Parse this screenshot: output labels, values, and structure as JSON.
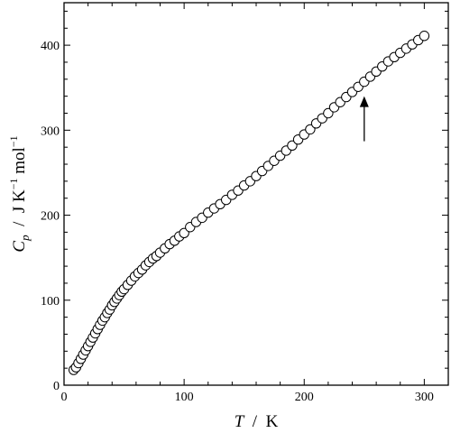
{
  "chart_data": {
    "type": "scatter",
    "xlabel": "T / K",
    "ylabel": "Cp / J K−1 mol−1",
    "xlabel_parts": {
      "symbol": "T",
      "sep": "  /  ",
      "unit": "K"
    },
    "ylabel_parts": {
      "symbol": "C",
      "subscript": "p",
      "sep": "  /  ",
      "unit_a": "J K",
      "sup_a": "−1",
      "unit_b": " mol",
      "sup_b": "−1"
    },
    "xlim": [
      0,
      320
    ],
    "ylim": [
      0,
      450
    ],
    "x_ticks": [
      "0",
      "100",
      "200",
      "300"
    ],
    "y_ticks": [
      "0",
      "100",
      "200",
      "300",
      "400"
    ],
    "grid": false,
    "marker": "open-circle",
    "annotation": {
      "type": "arrow",
      "x": 250,
      "y_tail": 287,
      "y_head": 340
    },
    "series": [
      {
        "x": [
          8,
          10,
          12,
          14,
          16,
          18,
          20,
          22,
          24,
          26,
          28,
          30,
          32,
          34,
          36,
          38,
          40,
          42,
          44,
          46,
          48,
          50,
          53,
          56,
          59,
          62,
          65,
          68,
          71,
          74,
          77,
          80,
          84,
          88,
          92,
          96,
          100,
          105,
          110,
          115,
          120,
          125,
          130,
          135,
          140,
          145,
          150,
          155,
          160,
          165,
          170,
          175,
          180,
          185,
          190,
          195,
          200,
          205,
          210,
          215,
          220,
          225,
          230,
          235,
          240,
          245,
          250,
          255,
          260,
          265,
          270,
          275,
          280,
          285,
          290,
          295,
          300
        ],
        "y": [
          18,
          21,
          26,
          31,
          36,
          41,
          46,
          51,
          56,
          61,
          66,
          71,
          76,
          80,
          85,
          89,
          94,
          98,
          102,
          106,
          110,
          113,
          118,
          123,
          128,
          132,
          136,
          141,
          145,
          149,
          152,
          156,
          161,
          166,
          170,
          175,
          179,
          186,
          192,
          197,
          203,
          208,
          213,
          218,
          224,
          229,
          235,
          240,
          246,
          252,
          258,
          264,
          270,
          276,
          282,
          289,
          295,
          301,
          308,
          314,
          320,
          327,
          333,
          339,
          345,
          351,
          357,
          363,
          369,
          375,
          381,
          386,
          391,
          396,
          401,
          406,
          411
        ]
      }
    ]
  }
}
